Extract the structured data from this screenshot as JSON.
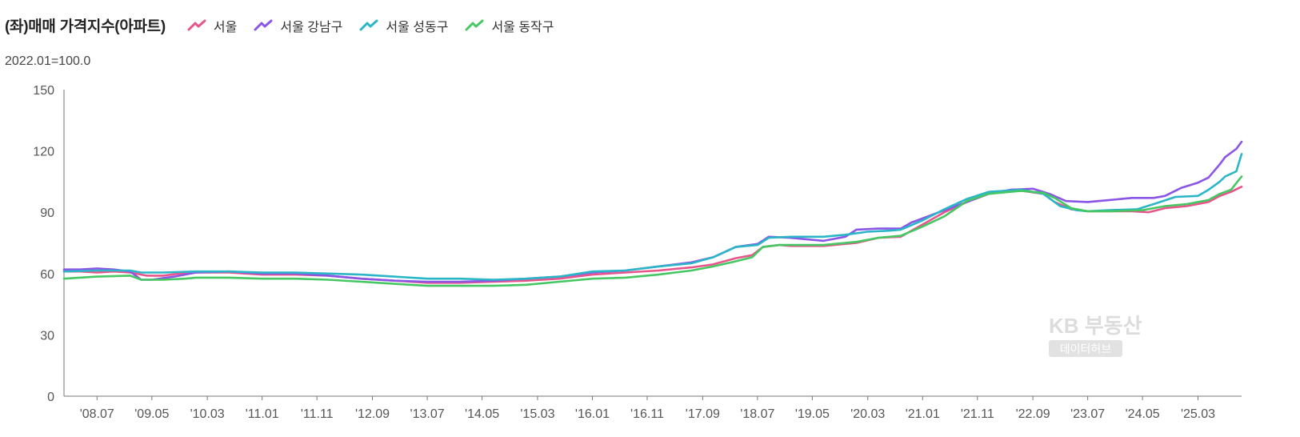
{
  "chart_data": {
    "type": "line",
    "title": "(좌)매매 가격지수(아파트)",
    "subtitle": "2022.01=100.0",
    "ylim": [
      0,
      150
    ],
    "yticks": [
      0,
      30,
      60,
      90,
      120,
      150
    ],
    "xlim": [
      2008.0,
      2025.83
    ],
    "xtick_labels": [
      "'08.07",
      "'09.05",
      "'10.03",
      "'11.01",
      "'11.11",
      "'12.09",
      "'13.07",
      "'14.05",
      "'15.03",
      "'16.01",
      "'16.11",
      "'17.09",
      "'18.07",
      "'19.05",
      "'20.03",
      "'21.01",
      "'21.11",
      "'22.09",
      "'23.07",
      "'24.05",
      "'25.03"
    ],
    "xtick_values": [
      2008.5,
      2009.33,
      2010.17,
      2011.0,
      2011.83,
      2012.67,
      2013.5,
      2014.33,
      2015.17,
      2016.0,
      2016.83,
      2017.67,
      2018.5,
      2019.33,
      2020.17,
      2021.0,
      2021.83,
      2022.67,
      2023.5,
      2024.33,
      2025.17
    ],
    "grid": false,
    "legend_position": "top",
    "watermark": {
      "brand": "KB 부동산",
      "badge": "데이터허브"
    },
    "series": [
      {
        "name": "서울",
        "color": "#e8558a",
        "points": [
          [
            2008.0,
            61.0
          ],
          [
            2008.25,
            61.0
          ],
          [
            2008.5,
            60.5
          ],
          [
            2008.75,
            61.0
          ],
          [
            2009.0,
            60.5
          ],
          [
            2009.25,
            59.0
          ],
          [
            2009.5,
            59.0
          ],
          [
            2009.75,
            60.0
          ],
          [
            2010.0,
            60.5
          ],
          [
            2010.5,
            60.5
          ],
          [
            2011.0,
            59.5
          ],
          [
            2011.5,
            59.5
          ],
          [
            2012.0,
            59.0
          ],
          [
            2012.5,
            57.5
          ],
          [
            2013.0,
            56.5
          ],
          [
            2013.5,
            55.5
          ],
          [
            2014.0,
            55.5
          ],
          [
            2014.5,
            56.0
          ],
          [
            2015.0,
            56.5
          ],
          [
            2015.5,
            57.5
          ],
          [
            2016.0,
            59.5
          ],
          [
            2016.5,
            60.5
          ],
          [
            2017.0,
            61.5
          ],
          [
            2017.5,
            63.0
          ],
          [
            2017.83,
            64.5
          ],
          [
            2018.17,
            67.5
          ],
          [
            2018.42,
            69.0
          ],
          [
            2018.58,
            73.0
          ],
          [
            2018.83,
            74.0
          ],
          [
            2019.0,
            73.5
          ],
          [
            2019.5,
            73.5
          ],
          [
            2020.0,
            75.0
          ],
          [
            2020.33,
            77.5
          ],
          [
            2020.67,
            78.0
          ],
          [
            2021.0,
            84.0
          ],
          [
            2021.33,
            90.0
          ],
          [
            2021.67,
            95.0
          ],
          [
            2022.0,
            99.0
          ],
          [
            2022.25,
            100.5
          ],
          [
            2022.5,
            100.5
          ],
          [
            2022.83,
            99.0
          ],
          [
            2023.0,
            95.0
          ],
          [
            2023.25,
            91.5
          ],
          [
            2023.5,
            90.5
          ],
          [
            2023.83,
            90.5
          ],
          [
            2024.17,
            90.5
          ],
          [
            2024.42,
            90.0
          ],
          [
            2024.67,
            92.0
          ],
          [
            2025.0,
            93.0
          ],
          [
            2025.33,
            95.0
          ],
          [
            2025.5,
            98.0
          ],
          [
            2025.67,
            100.0
          ],
          [
            2025.83,
            102.5
          ]
        ]
      },
      {
        "name": "서울 강남구",
        "color": "#8b55e6",
        "points": [
          [
            2008.0,
            62.0
          ],
          [
            2008.25,
            62.0
          ],
          [
            2008.5,
            62.5
          ],
          [
            2008.75,
            62.0
          ],
          [
            2009.0,
            61.0
          ],
          [
            2009.17,
            57.0
          ],
          [
            2009.33,
            57.0
          ],
          [
            2009.67,
            58.5
          ],
          [
            2010.0,
            60.5
          ],
          [
            2010.5,
            61.0
          ],
          [
            2011.0,
            60.0
          ],
          [
            2011.5,
            60.0
          ],
          [
            2012.0,
            59.0
          ],
          [
            2012.5,
            57.5
          ],
          [
            2013.0,
            56.5
          ],
          [
            2013.5,
            56.0
          ],
          [
            2014.0,
            56.0
          ],
          [
            2014.5,
            56.5
          ],
          [
            2015.0,
            57.5
          ],
          [
            2015.5,
            58.5
          ],
          [
            2016.0,
            60.5
          ],
          [
            2016.5,
            61.5
          ],
          [
            2017.0,
            63.5
          ],
          [
            2017.5,
            65.5
          ],
          [
            2017.83,
            68.0
          ],
          [
            2018.17,
            73.0
          ],
          [
            2018.5,
            74.5
          ],
          [
            2018.67,
            78.0
          ],
          [
            2019.0,
            77.5
          ],
          [
            2019.5,
            76.0
          ],
          [
            2019.83,
            78.0
          ],
          [
            2020.0,
            81.5
          ],
          [
            2020.33,
            82.0
          ],
          [
            2020.67,
            82.0
          ],
          [
            2020.83,
            85.0
          ],
          [
            2021.0,
            87.0
          ],
          [
            2021.33,
            91.0
          ],
          [
            2021.67,
            95.0
          ],
          [
            2022.0,
            99.0
          ],
          [
            2022.33,
            101.0
          ],
          [
            2022.67,
            101.5
          ],
          [
            2022.92,
            99.0
          ],
          [
            2023.17,
            95.5
          ],
          [
            2023.5,
            95.0
          ],
          [
            2023.83,
            96.0
          ],
          [
            2024.17,
            97.0
          ],
          [
            2024.5,
            97.0
          ],
          [
            2024.67,
            98.0
          ],
          [
            2024.92,
            102.0
          ],
          [
            2025.17,
            104.5
          ],
          [
            2025.33,
            107.0
          ],
          [
            2025.5,
            113.5
          ],
          [
            2025.58,
            117.0
          ],
          [
            2025.75,
            121.0
          ],
          [
            2025.83,
            124.5
          ]
        ]
      },
      {
        "name": "서울 성동구",
        "color": "#2bb6c8",
        "points": [
          [
            2008.0,
            61.0
          ],
          [
            2008.5,
            61.5
          ],
          [
            2009.0,
            61.5
          ],
          [
            2009.17,
            60.5
          ],
          [
            2009.5,
            60.5
          ],
          [
            2010.0,
            61.0
          ],
          [
            2010.5,
            61.0
          ],
          [
            2011.0,
            60.5
          ],
          [
            2011.5,
            60.5
          ],
          [
            2012.0,
            60.0
          ],
          [
            2012.5,
            59.5
          ],
          [
            2013.0,
            58.5
          ],
          [
            2013.5,
            57.5
          ],
          [
            2014.0,
            57.5
          ],
          [
            2014.5,
            57.0
          ],
          [
            2015.0,
            57.5
          ],
          [
            2015.5,
            58.5
          ],
          [
            2016.0,
            61.0
          ],
          [
            2016.5,
            61.5
          ],
          [
            2017.0,
            63.5
          ],
          [
            2017.5,
            65.0
          ],
          [
            2017.83,
            68.0
          ],
          [
            2018.17,
            73.0
          ],
          [
            2018.5,
            74.0
          ],
          [
            2018.67,
            77.5
          ],
          [
            2019.0,
            78.0
          ],
          [
            2019.5,
            78.0
          ],
          [
            2019.83,
            79.0
          ],
          [
            2020.17,
            80.5
          ],
          [
            2020.5,
            81.0
          ],
          [
            2020.67,
            81.5
          ],
          [
            2021.0,
            86.0
          ],
          [
            2021.33,
            91.5
          ],
          [
            2021.67,
            96.5
          ],
          [
            2022.0,
            100.0
          ],
          [
            2022.5,
            101.0
          ],
          [
            2022.83,
            99.0
          ],
          [
            2023.08,
            93.0
          ],
          [
            2023.33,
            91.0
          ],
          [
            2023.5,
            90.5
          ],
          [
            2023.83,
            91.0
          ],
          [
            2024.25,
            91.5
          ],
          [
            2024.5,
            94.0
          ],
          [
            2024.83,
            97.5
          ],
          [
            2025.17,
            98.0
          ],
          [
            2025.33,
            101.0
          ],
          [
            2025.5,
            105.0
          ],
          [
            2025.58,
            107.5
          ],
          [
            2025.75,
            110.0
          ],
          [
            2025.83,
            118.5
          ]
        ]
      },
      {
        "name": "서울 동작구",
        "color": "#45c863",
        "points": [
          [
            2008.0,
            57.5
          ],
          [
            2008.5,
            58.5
          ],
          [
            2009.0,
            59.0
          ],
          [
            2009.17,
            57.0
          ],
          [
            2009.5,
            57.0
          ],
          [
            2009.83,
            57.5
          ],
          [
            2010.0,
            58.0
          ],
          [
            2010.5,
            58.0
          ],
          [
            2011.0,
            57.5
          ],
          [
            2011.5,
            57.5
          ],
          [
            2012.0,
            57.0
          ],
          [
            2012.5,
            56.0
          ],
          [
            2013.0,
            55.0
          ],
          [
            2013.5,
            54.0
          ],
          [
            2014.0,
            54.0
          ],
          [
            2014.5,
            54.0
          ],
          [
            2015.0,
            54.5
          ],
          [
            2015.5,
            56.0
          ],
          [
            2016.0,
            57.5
          ],
          [
            2016.5,
            58.0
          ],
          [
            2017.0,
            59.5
          ],
          [
            2017.5,
            61.5
          ],
          [
            2017.83,
            63.5
          ],
          [
            2018.17,
            66.0
          ],
          [
            2018.42,
            68.0
          ],
          [
            2018.58,
            73.0
          ],
          [
            2018.83,
            74.0
          ],
          [
            2019.0,
            74.0
          ],
          [
            2019.5,
            74.0
          ],
          [
            2020.0,
            75.5
          ],
          [
            2020.33,
            77.5
          ],
          [
            2020.67,
            78.5
          ],
          [
            2021.0,
            83.0
          ],
          [
            2021.33,
            88.0
          ],
          [
            2021.67,
            95.5
          ],
          [
            2022.0,
            99.0
          ],
          [
            2022.5,
            100.5
          ],
          [
            2022.83,
            99.5
          ],
          [
            2023.0,
            97.0
          ],
          [
            2023.25,
            92.0
          ],
          [
            2023.5,
            90.5
          ],
          [
            2023.83,
            90.5
          ],
          [
            2024.33,
            91.0
          ],
          [
            2024.67,
            93.0
          ],
          [
            2025.0,
            94.0
          ],
          [
            2025.33,
            96.0
          ],
          [
            2025.5,
            99.0
          ],
          [
            2025.67,
            101.0
          ],
          [
            2025.83,
            107.5
          ]
        ]
      }
    ]
  }
}
